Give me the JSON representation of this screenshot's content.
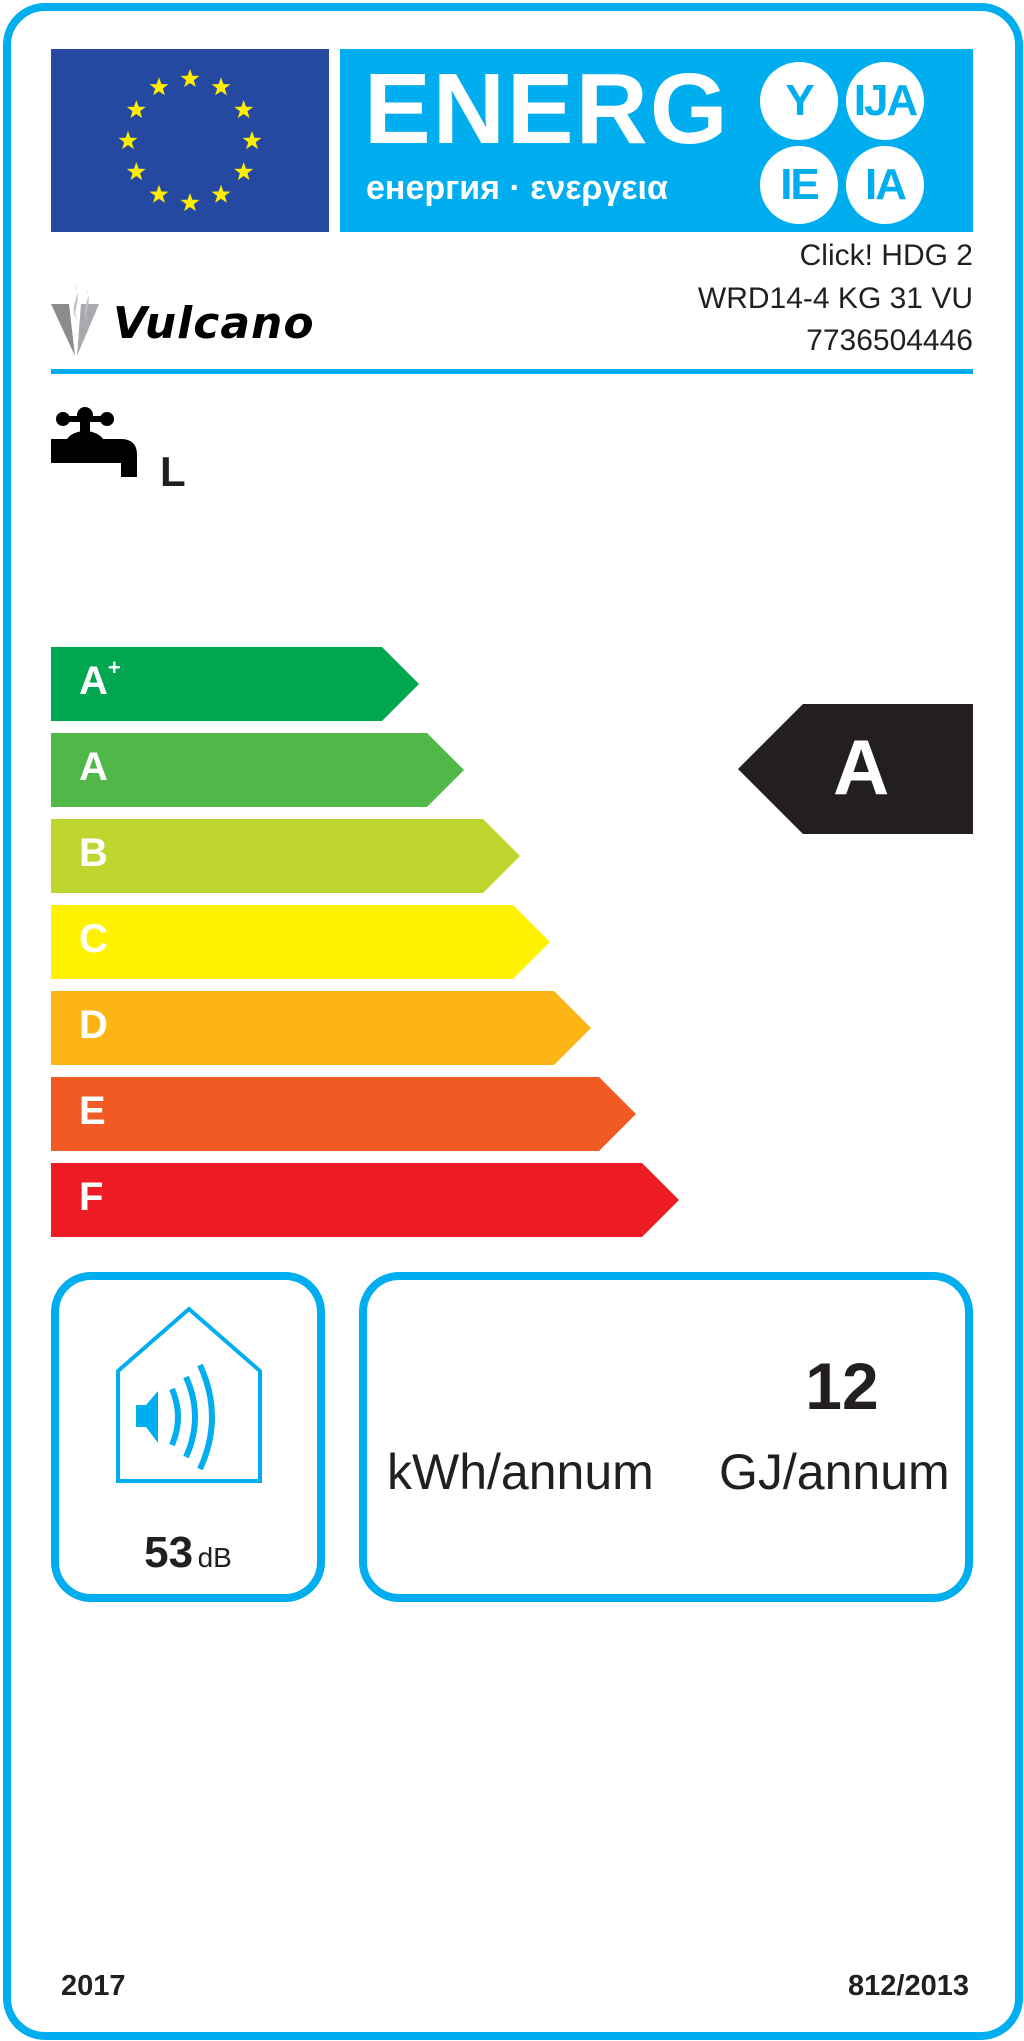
{
  "header": {
    "energy_title": "ENERG",
    "energy_subtitle": "енергия · ενεργεια",
    "suffixes": [
      "Y",
      "IJA",
      "IE",
      "IA"
    ],
    "flag_icon": "eu-flag-icon",
    "brand_color": "#00aeef",
    "flag_color": "#2549a0",
    "star_color": "#ffed00"
  },
  "supplier": {
    "logo_text": "Vulcano",
    "model_lines": [
      "Click! HDG 2",
      "WRD14-4 KG 31 VU",
      "7736504446"
    ]
  },
  "load_profile": {
    "icon": "water-tap-icon",
    "value": "L"
  },
  "scale": {
    "classes": [
      {
        "label": "A",
        "sup": "+",
        "color": "#00a650"
      },
      {
        "label": "A",
        "sup": "",
        "color": "#50b848"
      },
      {
        "label": "B",
        "sup": "",
        "color": "#bed62f"
      },
      {
        "label": "C",
        "sup": "",
        "color": "#fff200"
      },
      {
        "label": "D",
        "sup": "",
        "color": "#fcb514"
      },
      {
        "label": "E",
        "sup": "",
        "color": "#f15a22"
      },
      {
        "label": "F",
        "sup": "",
        "color": "#ed1c24"
      }
    ],
    "rating": "A",
    "rating_color": "#231f20"
  },
  "noise": {
    "icon": "house-sound-icon",
    "value": "53",
    "unit": "dB"
  },
  "energy": {
    "kwh_value": "",
    "gj_value": "12",
    "kwh_unit": "kWh/annum",
    "gj_unit": "GJ/annum"
  },
  "footer": {
    "year": "2017",
    "regulation": "812/2013"
  }
}
